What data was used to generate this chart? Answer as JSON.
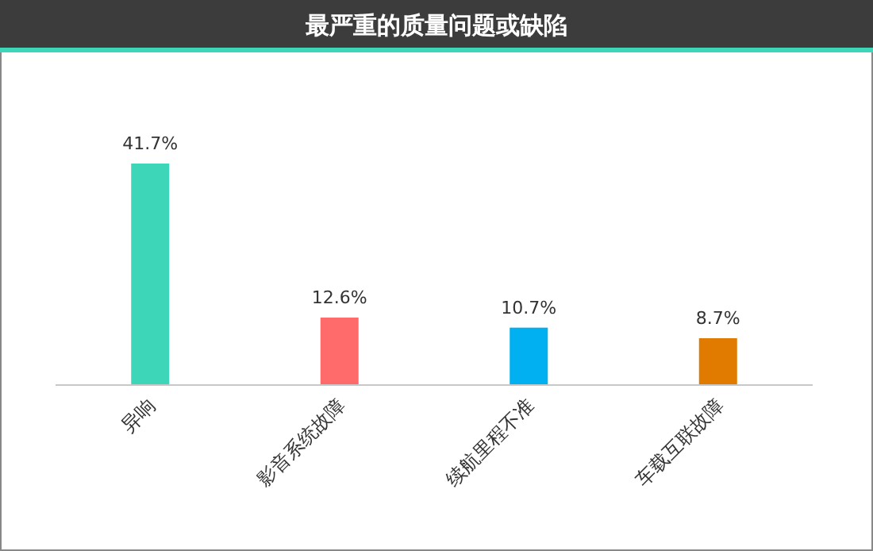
{
  "chart_data": {
    "type": "bar",
    "title": "最严重的质量问题或缺陷",
    "categories": [
      "异响",
      "影音系统故障",
      "续航里程不准",
      "车载互联故障"
    ],
    "values": [
      41.7,
      12.6,
      10.7,
      8.7
    ],
    "value_labels": [
      "41.7%",
      "12.6%",
      "10.7%",
      "8.7%"
    ],
    "colors": [
      "#3dd6b9",
      "#ff6b6b",
      "#00b0f0",
      "#e07b00"
    ]
  }
}
